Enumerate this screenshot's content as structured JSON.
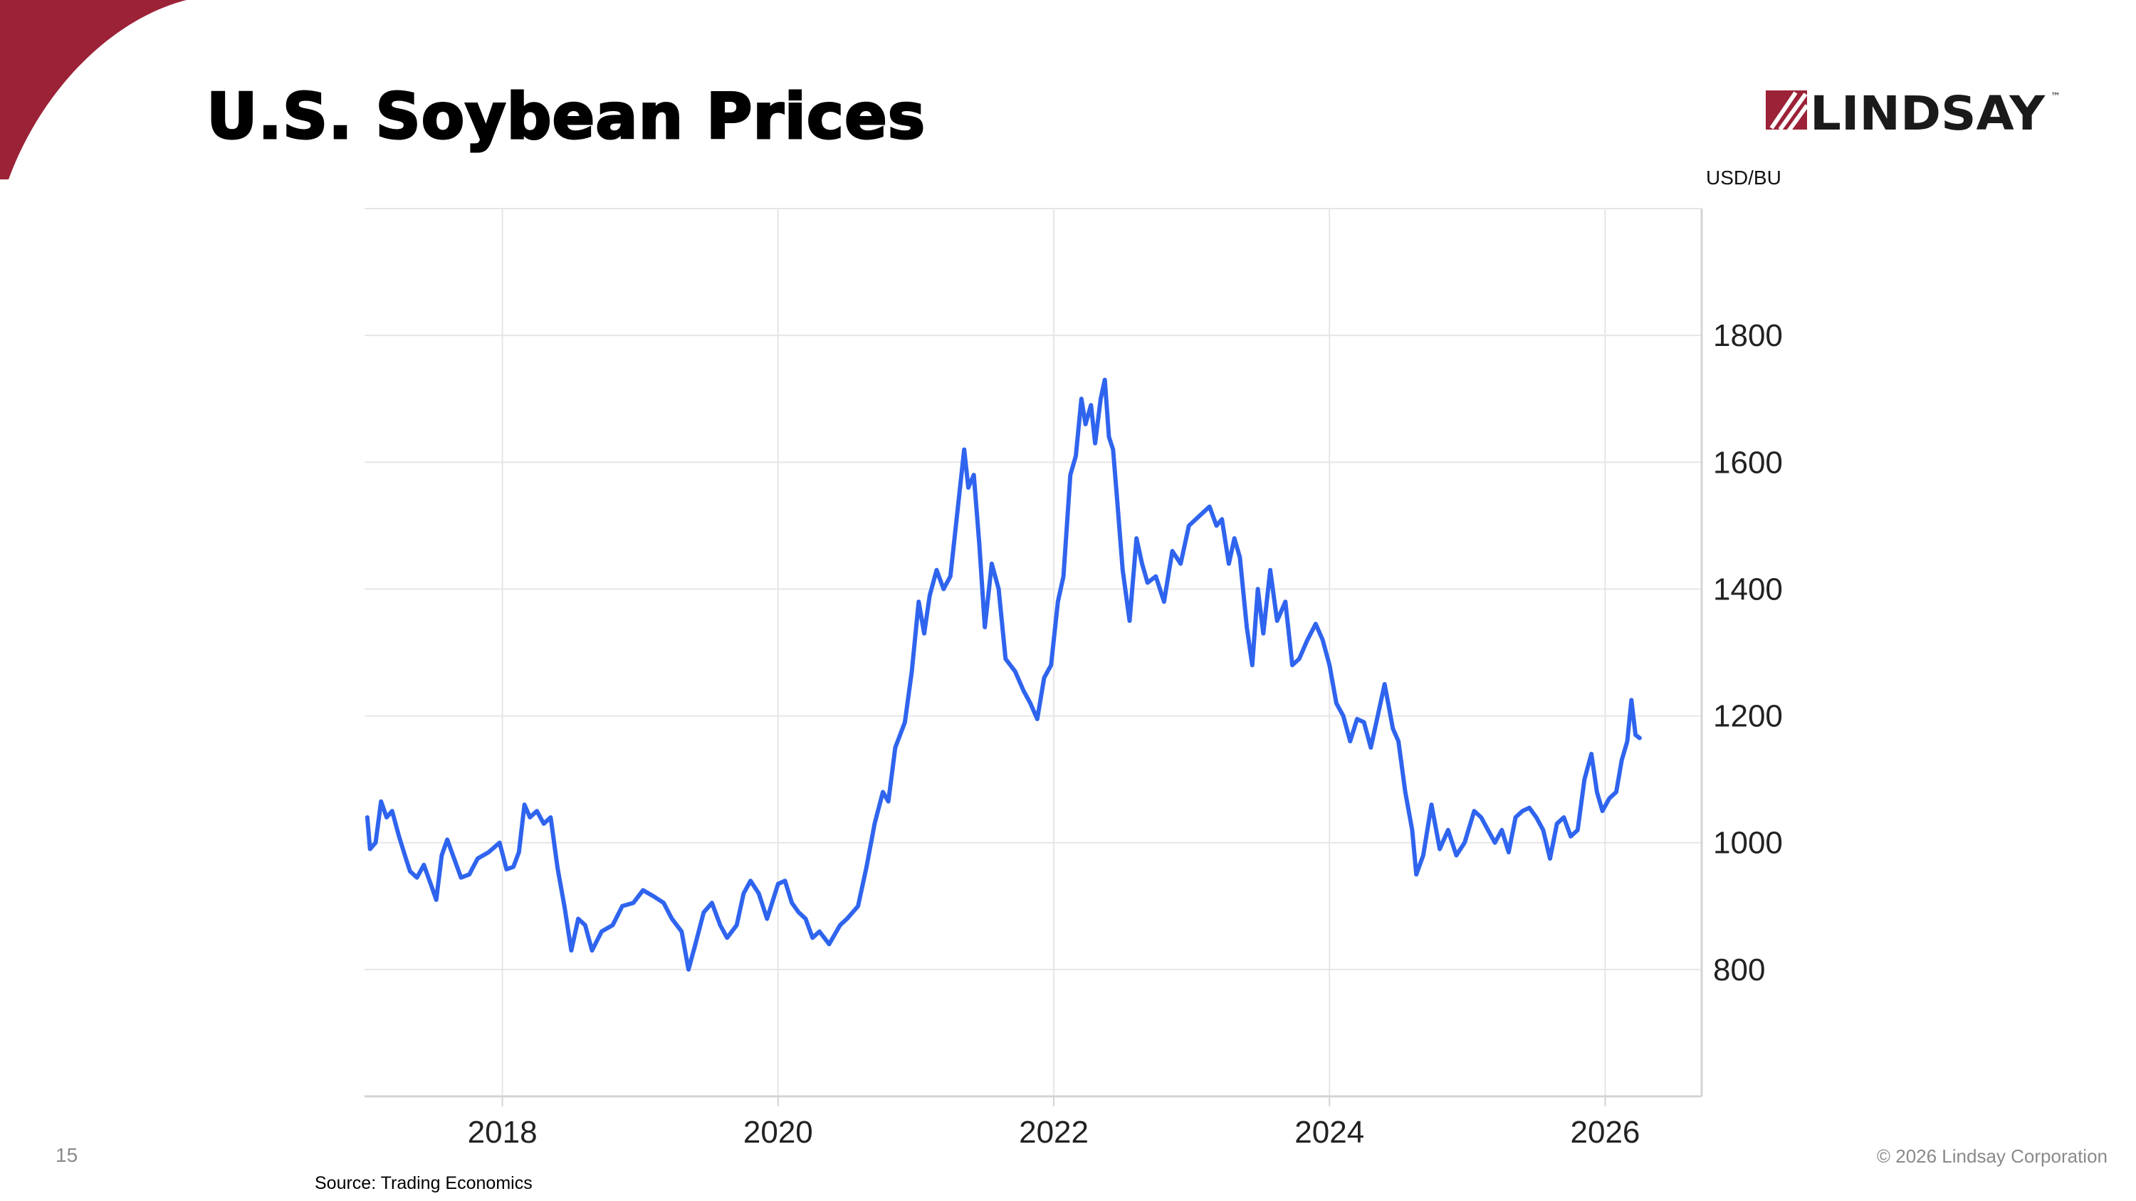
{
  "title": "U.S. Soybean Prices",
  "logo_text": "LINDSAY",
  "logo_tm": "™",
  "page_number": "15",
  "source": "Source: Trading Economics",
  "copyright": "© 2026 Lindsay Corporation",
  "colors": {
    "brand_red": "#9c2237",
    "line": "#2f64ee",
    "grid": "#e6e6e6"
  },
  "chart_data": {
    "type": "line",
    "title": "",
    "xlabel": "",
    "ylabel": "USD/BU",
    "xlim": [
      2017.0,
      2026.7
    ],
    "ylim": [
      600,
      2000
    ],
    "y_ticks": [
      800,
      1000,
      1200,
      1400,
      1600,
      1800
    ],
    "x_ticks": [
      2018,
      2020,
      2022,
      2024,
      2026
    ],
    "grid": true,
    "legend": "none",
    "series": [
      {
        "values": [
          [
            2017.02,
            1040
          ],
          [
            2017.04,
            990
          ],
          [
            2017.08,
            1000
          ],
          [
            2017.12,
            1065
          ],
          [
            2017.16,
            1040
          ],
          [
            2017.2,
            1050
          ],
          [
            2017.25,
            1010
          ],
          [
            2017.3,
            975
          ],
          [
            2017.33,
            955
          ],
          [
            2017.38,
            945
          ],
          [
            2017.43,
            965
          ],
          [
            2017.48,
            935
          ],
          [
            2017.52,
            910
          ],
          [
            2017.56,
            980
          ],
          [
            2017.6,
            1005
          ],
          [
            2017.65,
            975
          ],
          [
            2017.7,
            945
          ],
          [
            2017.76,
            950
          ],
          [
            2017.82,
            975
          ],
          [
            2017.9,
            985
          ],
          [
            2017.98,
            1000
          ],
          [
            2018.03,
            958
          ],
          [
            2018.08,
            962
          ],
          [
            2018.12,
            985
          ],
          [
            2018.16,
            1060
          ],
          [
            2018.2,
            1040
          ],
          [
            2018.25,
            1050
          ],
          [
            2018.3,
            1030
          ],
          [
            2018.35,
            1040
          ],
          [
            2018.4,
            960
          ],
          [
            2018.45,
            900
          ],
          [
            2018.5,
            830
          ],
          [
            2018.55,
            880
          ],
          [
            2018.6,
            870
          ],
          [
            2018.65,
            830
          ],
          [
            2018.72,
            860
          ],
          [
            2018.8,
            870
          ],
          [
            2018.87,
            900
          ],
          [
            2018.95,
            905
          ],
          [
            2019.02,
            925
          ],
          [
            2019.1,
            915
          ],
          [
            2019.17,
            905
          ],
          [
            2019.23,
            880
          ],
          [
            2019.3,
            860
          ],
          [
            2019.35,
            800
          ],
          [
            2019.4,
            840
          ],
          [
            2019.46,
            890
          ],
          [
            2019.52,
            905
          ],
          [
            2019.58,
            870
          ],
          [
            2019.63,
            850
          ],
          [
            2019.7,
            870
          ],
          [
            2019.75,
            920
          ],
          [
            2019.8,
            940
          ],
          [
            2019.86,
            920
          ],
          [
            2019.92,
            880
          ],
          [
            2020.0,
            935
          ],
          [
            2020.05,
            940
          ],
          [
            2020.1,
            905
          ],
          [
            2020.15,
            890
          ],
          [
            2020.2,
            880
          ],
          [
            2020.25,
            850
          ],
          [
            2020.3,
            860
          ],
          [
            2020.37,
            840
          ],
          [
            2020.45,
            870
          ],
          [
            2020.5,
            880
          ],
          [
            2020.58,
            900
          ],
          [
            2020.64,
            960
          ],
          [
            2020.7,
            1030
          ],
          [
            2020.76,
            1080
          ],
          [
            2020.8,
            1065
          ],
          [
            2020.85,
            1150
          ],
          [
            2020.92,
            1190
          ],
          [
            2020.97,
            1270
          ],
          [
            2021.02,
            1380
          ],
          [
            2021.06,
            1330
          ],
          [
            2021.1,
            1390
          ],
          [
            2021.15,
            1430
          ],
          [
            2021.2,
            1400
          ],
          [
            2021.25,
            1420
          ],
          [
            2021.3,
            1520
          ],
          [
            2021.35,
            1620
          ],
          [
            2021.38,
            1560
          ],
          [
            2021.42,
            1580
          ],
          [
            2021.46,
            1470
          ],
          [
            2021.5,
            1340
          ],
          [
            2021.55,
            1440
          ],
          [
            2021.6,
            1400
          ],
          [
            2021.65,
            1290
          ],
          [
            2021.72,
            1270
          ],
          [
            2021.78,
            1240
          ],
          [
            2021.83,
            1220
          ],
          [
            2021.88,
            1195
          ],
          [
            2021.93,
            1260
          ],
          [
            2021.98,
            1280
          ],
          [
            2022.03,
            1380
          ],
          [
            2022.07,
            1420
          ],
          [
            2022.12,
            1580
          ],
          [
            2022.16,
            1610
          ],
          [
            2022.2,
            1700
          ],
          [
            2022.23,
            1660
          ],
          [
            2022.27,
            1690
          ],
          [
            2022.3,
            1630
          ],
          [
            2022.34,
            1700
          ],
          [
            2022.37,
            1730
          ],
          [
            2022.4,
            1640
          ],
          [
            2022.43,
            1620
          ],
          [
            2022.46,
            1540
          ],
          [
            2022.5,
            1430
          ],
          [
            2022.55,
            1350
          ],
          [
            2022.6,
            1480
          ],
          [
            2022.64,
            1440
          ],
          [
            2022.68,
            1410
          ],
          [
            2022.74,
            1420
          ],
          [
            2022.8,
            1380
          ],
          [
            2022.86,
            1460
          ],
          [
            2022.92,
            1440
          ],
          [
            2022.98,
            1500
          ],
          [
            2023.03,
            1510
          ],
          [
            2023.08,
            1520
          ],
          [
            2023.13,
            1530
          ],
          [
            2023.18,
            1500
          ],
          [
            2023.22,
            1510
          ],
          [
            2023.27,
            1440
          ],
          [
            2023.31,
            1480
          ],
          [
            2023.35,
            1450
          ],
          [
            2023.4,
            1340
          ],
          [
            2023.44,
            1280
          ],
          [
            2023.48,
            1400
          ],
          [
            2023.52,
            1330
          ],
          [
            2023.57,
            1430
          ],
          [
            2023.62,
            1350
          ],
          [
            2023.68,
            1380
          ],
          [
            2023.73,
            1280
          ],
          [
            2023.78,
            1290
          ],
          [
            2023.84,
            1320
          ],
          [
            2023.9,
            1345
          ],
          [
            2023.95,
            1320
          ],
          [
            2024.0,
            1280
          ],
          [
            2024.05,
            1220
          ],
          [
            2024.1,
            1200
          ],
          [
            2024.15,
            1160
          ],
          [
            2024.2,
            1195
          ],
          [
            2024.25,
            1190
          ],
          [
            2024.3,
            1150
          ],
          [
            2024.35,
            1200
          ],
          [
            2024.4,
            1250
          ],
          [
            2024.46,
            1180
          ],
          [
            2024.5,
            1160
          ],
          [
            2024.55,
            1080
          ],
          [
            2024.6,
            1020
          ],
          [
            2024.63,
            950
          ],
          [
            2024.68,
            980
          ],
          [
            2024.74,
            1060
          ],
          [
            2024.8,
            990
          ],
          [
            2024.86,
            1020
          ],
          [
            2024.92,
            980
          ],
          [
            2024.98,
            1000
          ],
          [
            2025.05,
            1050
          ],
          [
            2025.1,
            1040
          ],
          [
            2025.15,
            1020
          ],
          [
            2025.2,
            1000
          ],
          [
            2025.25,
            1020
          ],
          [
            2025.3,
            985
          ],
          [
            2025.35,
            1040
          ],
          [
            2025.4,
            1050
          ],
          [
            2025.45,
            1055
          ],
          [
            2025.5,
            1040
          ],
          [
            2025.55,
            1020
          ],
          [
            2025.6,
            975
          ],
          [
            2025.65,
            1030
          ],
          [
            2025.7,
            1040
          ],
          [
            2025.75,
            1010
          ],
          [
            2025.8,
            1020
          ],
          [
            2025.85,
            1100
          ],
          [
            2025.9,
            1140
          ],
          [
            2025.94,
            1080
          ],
          [
            2025.98,
            1050
          ],
          [
            2026.03,
            1070
          ],
          [
            2026.08,
            1080
          ],
          [
            2026.12,
            1130
          ],
          [
            2026.16,
            1160
          ],
          [
            2026.19,
            1225
          ],
          [
            2026.22,
            1170
          ],
          [
            2026.25,
            1165
          ]
        ]
      }
    ]
  }
}
